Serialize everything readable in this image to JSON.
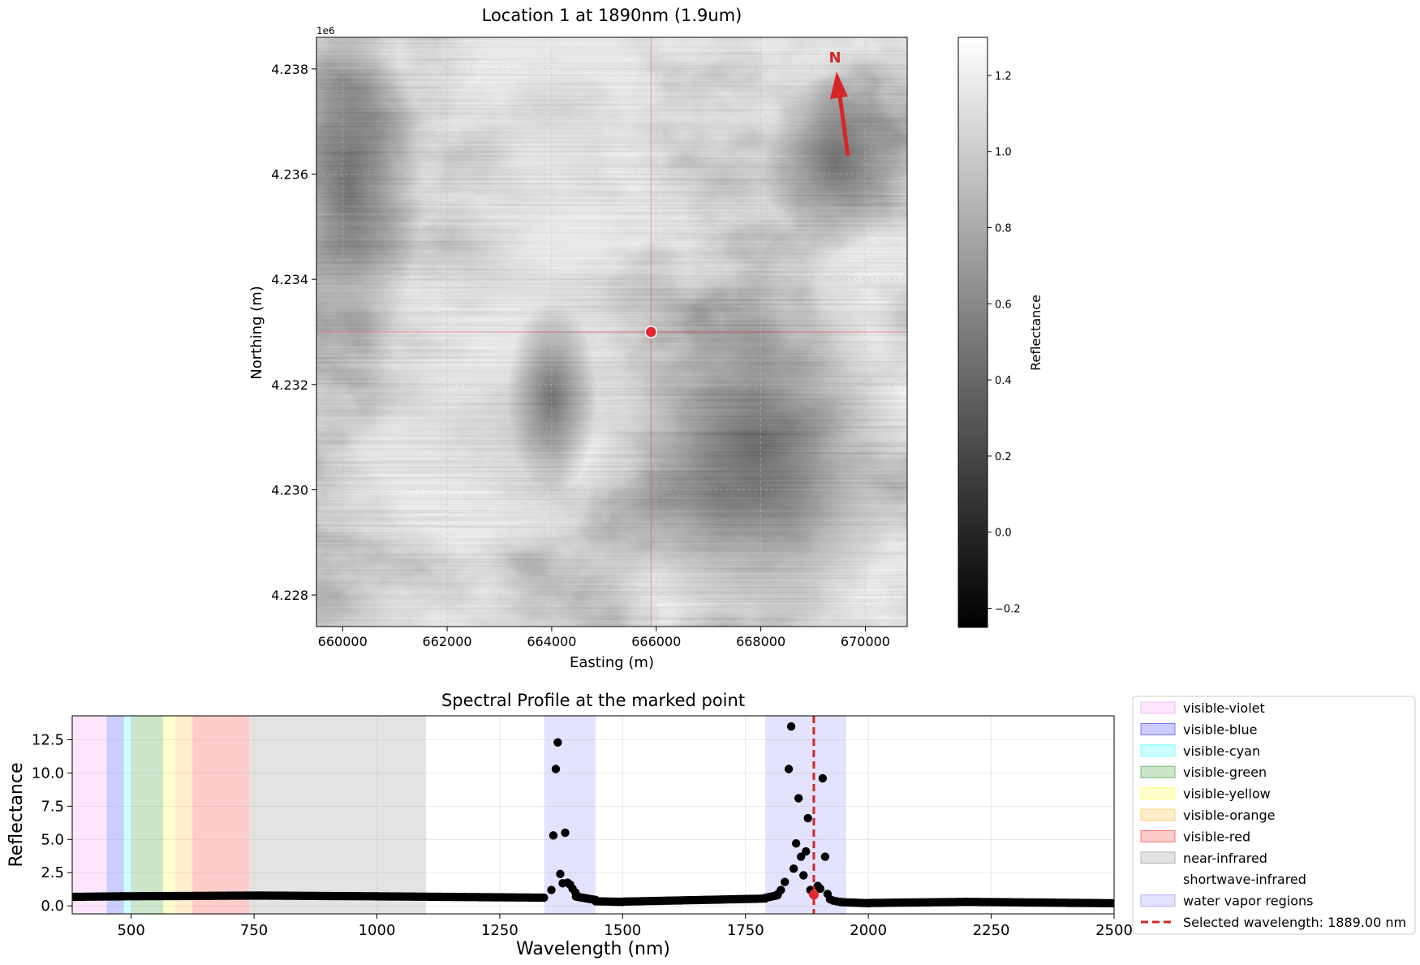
{
  "map_panel": {
    "title": "Location 1 at 1890nm (1.9um)",
    "xlabel": "Easting (m)",
    "ylabel": "Northing (m)",
    "y_offset_label": "1e6",
    "x_ticks": [
      "660000",
      "662000",
      "664000",
      "666000",
      "668000",
      "670000"
    ],
    "y_ticks": [
      "4.228",
      "4.230",
      "4.232",
      "4.234",
      "4.236",
      "4.238"
    ],
    "north_label": "N",
    "colorbar_label": "Reflectance",
    "colorbar_ticks": [
      "−0.2",
      "0.0",
      "0.2",
      "0.4",
      "0.6",
      "0.8",
      "1.0",
      "1.2"
    ],
    "marker_color": "#e0282e",
    "arrow_color": "#d62728"
  },
  "chart_data": [
    {
      "type": "heatmap",
      "title": "Location 1 at 1890nm (1.9um)",
      "xlabel": "Easting (m)",
      "ylabel": "Northing (m)",
      "xlim": [
        659500,
        670800
      ],
      "ylim": [
        4227400,
        4238600
      ],
      "colorbar": {
        "label": "Reflectance",
        "range": [
          -0.25,
          1.3
        ],
        "colormap": "gray"
      },
      "marked_point": {
        "easting": 665900,
        "northing": 4233000
      },
      "north_arrow": "top-right"
    },
    {
      "type": "scatter",
      "title": "Spectral Profile at the marked point",
      "xlabel": "Wavelength (nm)",
      "ylabel": "Reflectance",
      "xlim": [
        380,
        2500
      ],
      "ylim": [
        -0.6,
        14.3
      ],
      "x_ticks": [
        "500",
        "750",
        "1000",
        "1250",
        "1500",
        "1750",
        "2000",
        "2250",
        "2500"
      ],
      "y_ticks": [
        "0.0",
        "2.5",
        "5.0",
        "7.5",
        "10.0",
        "12.5"
      ],
      "grid": true,
      "legend_position": "outside-right",
      "regions": [
        {
          "name": "visible-violet",
          "range": [
            380,
            450
          ],
          "color": "#ee82ee",
          "alpha": 0.2
        },
        {
          "name": "visible-blue",
          "range": [
            450,
            485
          ],
          "color": "#0000ff",
          "alpha": 0.2
        },
        {
          "name": "visible-cyan",
          "range": [
            485,
            500
          ],
          "color": "#00ffff",
          "alpha": 0.2
        },
        {
          "name": "visible-green",
          "range": [
            500,
            565
          ],
          "color": "#008000",
          "alpha": 0.2
        },
        {
          "name": "visible-yellow",
          "range": [
            565,
            590
          ],
          "color": "#ffff00",
          "alpha": 0.2
        },
        {
          "name": "visible-orange",
          "range": [
            590,
            625
          ],
          "color": "#ffa500",
          "alpha": 0.2
        },
        {
          "name": "visible-red",
          "range": [
            625,
            740
          ],
          "color": "#ff0000",
          "alpha": 0.2
        },
        {
          "name": "near-infrared",
          "range": [
            740,
            1100
          ],
          "color": "#808080",
          "alpha": 0.22
        },
        {
          "name": "shortwave-infrared",
          "range": [
            1100,
            2500
          ],
          "color": "#ffffff",
          "alpha": 0.0
        }
      ],
      "water_vapor": {
        "name": "water vapor regions",
        "ranges": [
          [
            1340,
            1445
          ],
          [
            1790,
            1955
          ]
        ],
        "color": "#0000ff",
        "alpha": 0.11
      },
      "selected_wavelength": {
        "label": "Selected wavelength: 1889.00 nm",
        "x": 1889,
        "color": "#d62728",
        "y": 0.85
      },
      "outliers": [
        {
          "x": 1355,
          "y": 1.2
        },
        {
          "x": 1359,
          "y": 5.3
        },
        {
          "x": 1364,
          "y": 10.3
        },
        {
          "x": 1368,
          "y": 12.3
        },
        {
          "x": 1373,
          "y": 2.4
        },
        {
          "x": 1378,
          "y": 1.7
        },
        {
          "x": 1383,
          "y": 5.5
        },
        {
          "x": 1388,
          "y": 1.75
        },
        {
          "x": 1393,
          "y": 1.6
        },
        {
          "x": 1398,
          "y": 1.3
        },
        {
          "x": 1404,
          "y": 1.0
        },
        {
          "x": 1816,
          "y": 0.9
        },
        {
          "x": 1822,
          "y": 1.2
        },
        {
          "x": 1830,
          "y": 1.8
        },
        {
          "x": 1838,
          "y": 10.3
        },
        {
          "x": 1843,
          "y": 13.5
        },
        {
          "x": 1848,
          "y": 2.8
        },
        {
          "x": 1853,
          "y": 4.7
        },
        {
          "x": 1858,
          "y": 8.1
        },
        {
          "x": 1863,
          "y": 3.7
        },
        {
          "x": 1868,
          "y": 2.3
        },
        {
          "x": 1873,
          "y": 4.1
        },
        {
          "x": 1877,
          "y": 6.6
        },
        {
          "x": 1882,
          "y": 1.2
        },
        {
          "x": 1897,
          "y": 1.5
        },
        {
          "x": 1902,
          "y": 1.3
        },
        {
          "x": 1907,
          "y": 9.6
        },
        {
          "x": 1912,
          "y": 3.7
        },
        {
          "x": 1917,
          "y": 0.9
        },
        {
          "x": 1922,
          "y": 0.5
        },
        {
          "x": 1928,
          "y": 0.4
        },
        {
          "x": 1935,
          "y": 0.35
        },
        {
          "x": 1942,
          "y": 0.3
        }
      ],
      "baseline_segments": [
        {
          "range": [
            380,
            480
          ],
          "values": [
            0.68,
            0.72
          ]
        },
        {
          "range": [
            480,
            760
          ],
          "values": [
            0.72,
            0.78
          ]
        },
        {
          "range": [
            760,
            1000
          ],
          "values": [
            0.78,
            0.72
          ]
        },
        {
          "range": [
            1000,
            1340
          ],
          "values": [
            0.72,
            0.62
          ]
        },
        {
          "range": [
            1405,
            1445
          ],
          "values": [
            0.7,
            0.45
          ]
        },
        {
          "range": [
            1445,
            1500
          ],
          "values": [
            0.35,
            0.3
          ]
        },
        {
          "range": [
            1500,
            1790
          ],
          "values": [
            0.32,
            0.55
          ]
        },
        {
          "range": [
            1790,
            1815
          ],
          "values": [
            0.6,
            0.8
          ]
        },
        {
          "range": [
            1945,
            2000
          ],
          "values": [
            0.28,
            0.2
          ]
        },
        {
          "range": [
            2000,
            2200
          ],
          "values": [
            0.22,
            0.3
          ]
        },
        {
          "range": [
            2200,
            2500
          ],
          "values": [
            0.3,
            0.2
          ]
        }
      ]
    }
  ],
  "spectral_panel": {
    "title": "Spectral Profile at the marked point",
    "xlabel": "Wavelength (nm)",
    "ylabel": "Reflectance",
    "x_ticks": [
      "500",
      "750",
      "1000",
      "1250",
      "1500",
      "1750",
      "2000",
      "2250",
      "2500"
    ],
    "y_ticks": [
      "0.0",
      "2.5",
      "5.0",
      "7.5",
      "10.0",
      "12.5"
    ]
  },
  "legend": {
    "items": [
      {
        "label": "visible-violet",
        "color": "#ee82ee",
        "alpha": 0.2,
        "kind": "patch"
      },
      {
        "label": "visible-blue",
        "color": "#0000ff",
        "alpha": 0.2,
        "kind": "patch"
      },
      {
        "label": "visible-cyan",
        "color": "#00ffff",
        "alpha": 0.2,
        "kind": "patch"
      },
      {
        "label": "visible-green",
        "color": "#008000",
        "alpha": 0.2,
        "kind": "patch"
      },
      {
        "label": "visible-yellow",
        "color": "#ffff00",
        "alpha": 0.2,
        "kind": "patch"
      },
      {
        "label": "visible-orange",
        "color": "#ffa500",
        "alpha": 0.2,
        "kind": "patch"
      },
      {
        "label": "visible-red",
        "color": "#ff0000",
        "alpha": 0.2,
        "kind": "patch"
      },
      {
        "label": "near-infrared",
        "color": "#808080",
        "alpha": 0.22,
        "kind": "patch"
      },
      {
        "label": "shortwave-infrared",
        "color": "#ffffff",
        "alpha": 0.0,
        "kind": "patch"
      },
      {
        "label": "water vapor regions",
        "color": "#0000ff",
        "alpha": 0.11,
        "kind": "patch"
      },
      {
        "label": "Selected wavelength: 1889.00 nm",
        "color": "#d62728",
        "alpha": 1,
        "kind": "dashed-line"
      }
    ]
  }
}
